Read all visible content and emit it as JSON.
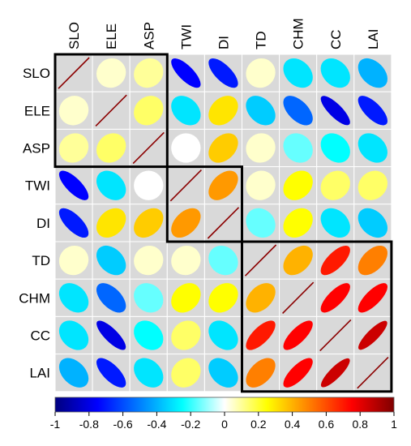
{
  "chart_data": {
    "type": "heatmap",
    "subtype": "correlation-ellipse-matrix",
    "variables": [
      "SLO",
      "ELE",
      "ASP",
      "TWI",
      "DI",
      "TD",
      "CHM",
      "CC",
      "LAI"
    ],
    "matrix": [
      [
        1.0,
        0.05,
        0.1,
        -0.75,
        -0.7,
        0.05,
        -0.3,
        -0.3,
        -0.4
      ],
      [
        0.05,
        1.0,
        0.15,
        -0.3,
        0.3,
        -0.35,
        -0.55,
        -0.8,
        -0.7
      ],
      [
        0.1,
        0.15,
        1.0,
        0.0,
        0.35,
        0.05,
        -0.15,
        -0.25,
        -0.3
      ],
      [
        -0.75,
        -0.3,
        0.0,
        1.0,
        0.45,
        0.05,
        0.25,
        0.15,
        0.15
      ],
      [
        -0.7,
        0.3,
        0.35,
        0.45,
        1.0,
        -0.15,
        0.25,
        -0.3,
        -0.35
      ],
      [
        0.05,
        -0.35,
        0.05,
        0.05,
        -0.15,
        1.0,
        0.4,
        0.7,
        0.5
      ],
      [
        -0.3,
        -0.55,
        -0.15,
        0.25,
        0.25,
        0.4,
        1.0,
        0.75,
        0.75
      ],
      [
        -0.3,
        -0.8,
        -0.25,
        0.15,
        -0.3,
        0.7,
        0.75,
        1.0,
        0.85
      ],
      [
        -0.4,
        -0.7,
        -0.3,
        0.15,
        -0.35,
        0.5,
        0.75,
        0.85,
        1.0
      ]
    ],
    "clusters": [
      [
        0,
        2
      ],
      [
        3,
        4
      ],
      [
        5,
        8
      ]
    ],
    "colorbar": {
      "ticks": [
        "-1",
        "-0.8",
        "-0.6",
        "-0.4",
        "-0.2",
        "0",
        "0.2",
        "0.4",
        "0.6",
        "0.8",
        "1"
      ],
      "range": [
        -1,
        1
      ],
      "palette": [
        "#00007F",
        "#0000FF",
        "#007FFF",
        "#00FFFF",
        "#FFFFFF",
        "#FFFF00",
        "#FF7F00",
        "#FF0000",
        "#7F0000"
      ]
    },
    "diagonal_color": "#8B0000",
    "grid_color": "#FFFFFF",
    "cell_background": "#D9D9D9",
    "cluster_outline_color": "#000000"
  }
}
